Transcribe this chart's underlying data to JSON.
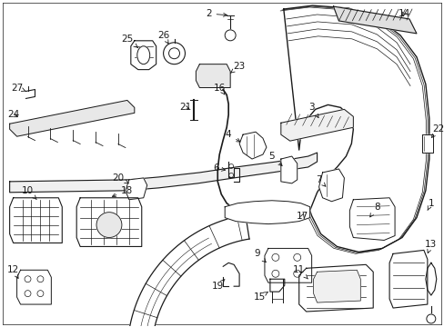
{
  "bg": "#ffffff",
  "lc": "#1a1a1a",
  "fig_w": 4.89,
  "fig_h": 3.6,
  "dpi": 100
}
